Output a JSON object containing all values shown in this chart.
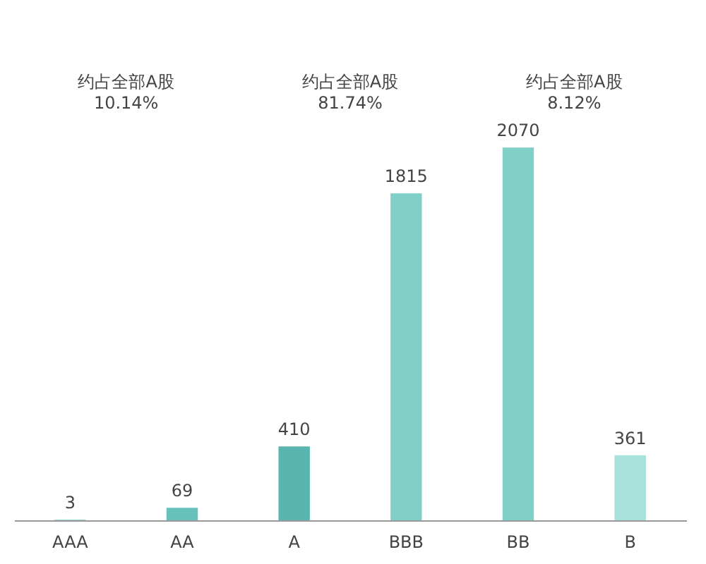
{
  "chart_data": {
    "type": "bar",
    "categories": [
      "AAA",
      "AA",
      "A",
      "BBB",
      "BB",
      "B"
    ],
    "values": [
      3,
      69,
      410,
      1815,
      2070,
      361
    ],
    "colors": [
      "#6cc4bd",
      "#66c2bb",
      "#5ab5b0",
      "#80d0c8",
      "#80d0c8",
      "#a8e0dc"
    ],
    "data_labels": true,
    "grid": false,
    "legend": false,
    "annotations": [
      "约占全部A股\n10.14%",
      "约占全部A股\n81.74%",
      "约占全部A股\n8.12%"
    ]
  }
}
